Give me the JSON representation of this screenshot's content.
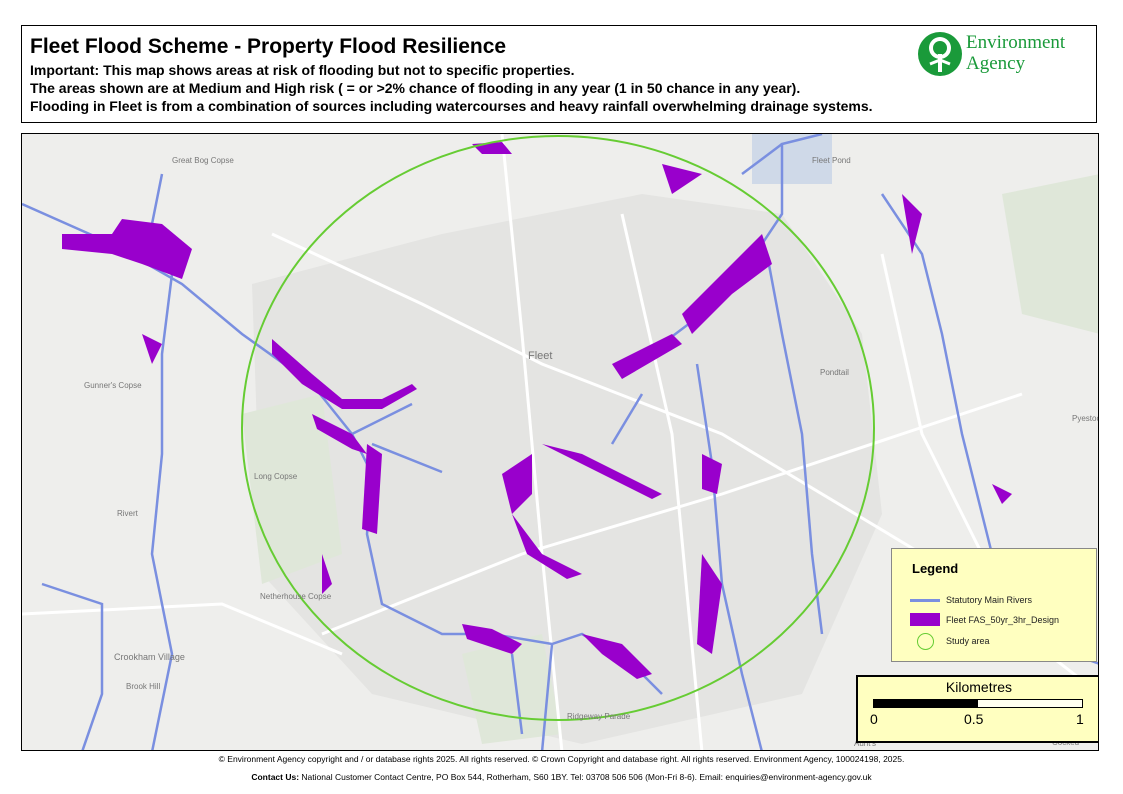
{
  "header": {
    "title": "Fleet Flood Scheme - Property Flood Resilience",
    "lines": [
      "Important: This map shows areas at risk of flooding but not to specific properties.",
      "The areas shown are at Medium and High risk ( = or >2% chance of flooding in any year (1 in 50 chance in any year).",
      "Flooding in Fleet is from a combination of sources including watercourses and heavy rainfall overwhelming drainage systems."
    ],
    "logo": {
      "line1": "Environment",
      "line2": "Agency",
      "color": "#1a9a3a"
    }
  },
  "map": {
    "places": [
      "Fleet",
      "Great Bog Copse",
      "Rivert",
      "Gunner's Copse",
      "Long Copse",
      "Netherhouse Copse",
      "Crookham Village",
      "Brook Hill",
      "Ridgeway Parade",
      "Pondtail",
      "Fleet Pond",
      "Aunt's",
      "Cocked",
      "Pyestock"
    ],
    "colors": {
      "river": "#7a8fe0",
      "flood": "#9900cc",
      "study_area": "#66cc33",
      "background": "#eeeeec"
    }
  },
  "legend": {
    "title": "Legend",
    "items": [
      {
        "label": "Statutory Main Rivers",
        "symbol": "line",
        "color": "#7a8fe0"
      },
      {
        "label": "Fleet FAS_50yr_3hr_Design",
        "symbol": "fill",
        "color": "#9900cc"
      },
      {
        "label": "Study area",
        "symbol": "circle",
        "color": "#66cc33"
      }
    ]
  },
  "scalebar": {
    "unit": "Kilometres",
    "ticks": [
      "0",
      "0.5",
      "1"
    ]
  },
  "footer": {
    "copyright": "© Environment Agency copyright and / or database rights 2025. All rights reserved. © Crown Copyright and database right. All rights reserved. Environment Agency, 100024198, 2025.",
    "contact_label": "Contact Us:",
    "contact": " National Customer Contact Centre, PO Box 544, Rotherham, S60 1BY. Tel: 03708 506 506 (Mon-Fri 8-6). Email: enquiries@environment-agency.gov.uk"
  }
}
